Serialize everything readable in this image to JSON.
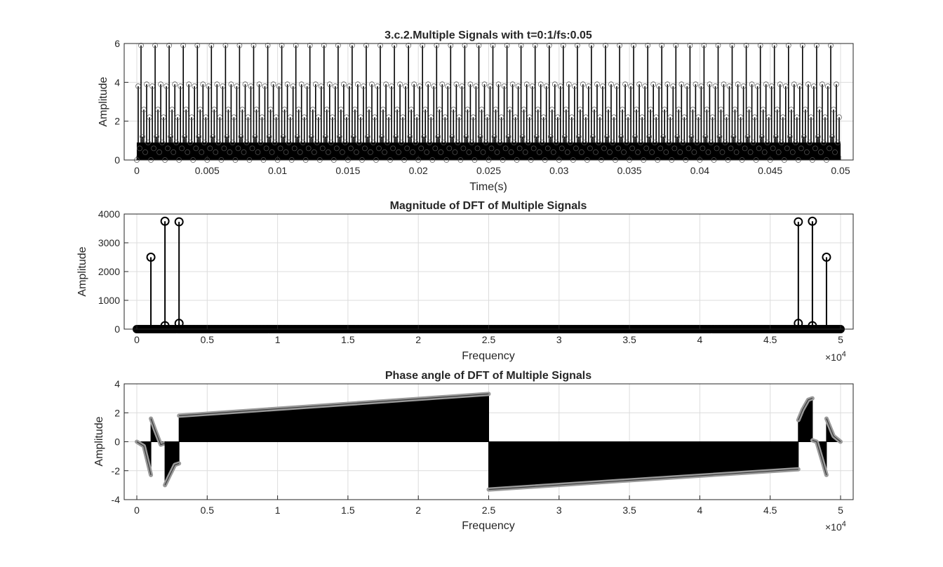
{
  "chart_data": [
    {
      "type": "stem",
      "title": "3.c.2.Multiple Signals with t=0:1/fs:0.05",
      "xlabel": "Time(s)",
      "ylabel": "Amplitude",
      "xlim": [
        0,
        0.05
      ],
      "ylim": [
        0,
        6
      ],
      "grid": true,
      "x_ticks": [
        "0",
        "0.005",
        "0.01",
        "0.015",
        "0.02",
        "0.025",
        "0.03",
        "0.035",
        "0.04",
        "0.045",
        "0.05"
      ],
      "y_ticks": [
        "0",
        "2",
        "4",
        "6"
      ],
      "series": [
        {
          "period_s": 0.001,
          "envelope": [
            {
              "t": 0.0,
              "v": 0.0
            },
            {
              "t": 0.0001,
              "v": 3.8
            },
            {
              "t": 0.0002,
              "v": 0.6
            },
            {
              "t": 0.0003,
              "v": 5.9
            },
            {
              "t": 0.0004,
              "v": 1.2
            },
            {
              "t": 0.0005,
              "v": 2.6
            },
            {
              "t": 0.0006,
              "v": 0.4
            },
            {
              "t": 0.0007,
              "v": 3.9
            },
            {
              "t": 0.0008,
              "v": 0.9
            },
            {
              "t": 0.0009,
              "v": 2.2
            }
          ],
          "ymax": 5.9
        }
      ],
      "marker": "circle"
    },
    {
      "type": "stem",
      "title": "Magnitude of DFT of Multiple Signals",
      "xlabel": "Frequency",
      "ylabel": "Amplitude",
      "xlim": [
        0,
        50000
      ],
      "ylim": [
        0,
        4000
      ],
      "grid": true,
      "x_ticks": [
        "0",
        "0.5",
        "1",
        "1.5",
        "2",
        "2.5",
        "3",
        "3.5",
        "4",
        "4.5",
        "5"
      ],
      "y_ticks": [
        "0",
        "1000",
        "2000",
        "3000",
        "4000"
      ],
      "x_exponent_label": "×10",
      "x_exponent_power": "4",
      "peaks": [
        {
          "x": 1000,
          "y": 2500
        },
        {
          "x": 2000,
          "y": 3750
        },
        {
          "x": 3000,
          "y": 3730
        },
        {
          "x": 47000,
          "y": 3730
        },
        {
          "x": 48000,
          "y": 3750
        },
        {
          "x": 49000,
          "y": 2500
        }
      ],
      "baseline_points": [
        {
          "x": 2000,
          "y": 120
        },
        {
          "x": 3000,
          "y": 200
        },
        {
          "x": 47000,
          "y": 200
        },
        {
          "x": 48000,
          "y": 120
        }
      ],
      "marker": "circle"
    },
    {
      "type": "stem",
      "title": "Phase angle of DFT of Multiple Signals",
      "xlabel": "Frequency",
      "ylabel": "Amplitude",
      "xlim": [
        0,
        50000
      ],
      "ylim": [
        -4,
        4
      ],
      "grid": true,
      "x_ticks": [
        "0",
        "0.5",
        "1",
        "1.5",
        "2",
        "2.5",
        "3",
        "3.5",
        "4",
        "4.5",
        "5"
      ],
      "y_ticks": [
        "-4",
        "-2",
        "0",
        "2",
        "4"
      ],
      "x_exponent_label": "×10",
      "x_exponent_power": "4",
      "segments": [
        {
          "x": [
            0,
            500,
            1000
          ],
          "y": [
            0.0,
            -0.3,
            -2.3
          ]
        },
        {
          "x": [
            1000,
            1300,
            1700,
            2000
          ],
          "y": [
            1.6,
            0.8,
            -0.2,
            -0.1
          ]
        },
        {
          "x": [
            2000,
            2300,
            2700,
            3000
          ],
          "y": [
            -3.0,
            -2.4,
            -1.6,
            -1.5
          ]
        },
        {
          "x": [
            3000,
            25000
          ],
          "y": [
            1.8,
            3.3
          ]
        },
        {
          "x": [
            25000,
            47000
          ],
          "y": [
            -3.3,
            -1.9
          ]
        },
        {
          "x": [
            47000,
            47300,
            47700,
            48000
          ],
          "y": [
            1.5,
            2.2,
            2.9,
            3.0
          ]
        },
        {
          "x": [
            48000,
            48300,
            48700,
            49000
          ],
          "y": [
            0.1,
            0.0,
            -1.3,
            -2.3
          ]
        },
        {
          "x": [
            49000,
            49500,
            50000
          ],
          "y": [
            1.6,
            0.4,
            0.0
          ]
        }
      ],
      "marker": "circle"
    }
  ]
}
